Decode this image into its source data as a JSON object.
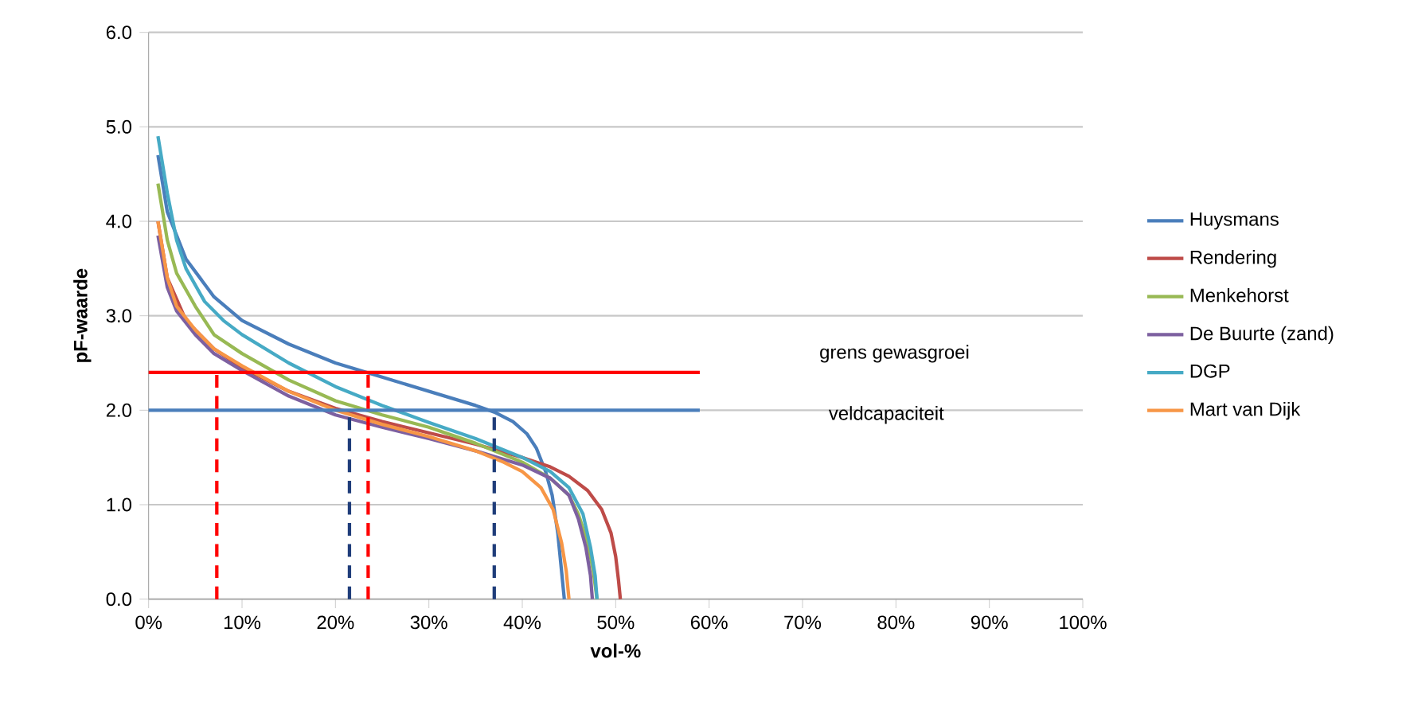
{
  "chart_data": {
    "type": "line",
    "xlabel": "vol-%",
    "ylabel": "pF-waarde",
    "xlim": [
      0,
      100
    ],
    "ylim": [
      0,
      6
    ],
    "xticks": [
      {
        "value": 0,
        "label": "0%"
      },
      {
        "value": 10,
        "label": "10%"
      },
      {
        "value": 20,
        "label": "20%"
      },
      {
        "value": 30,
        "label": "30%"
      },
      {
        "value": 40,
        "label": "40%"
      },
      {
        "value": 50,
        "label": "50%"
      },
      {
        "value": 60,
        "label": "60%"
      },
      {
        "value": 70,
        "label": "70%"
      },
      {
        "value": 80,
        "label": "80%"
      },
      {
        "value": 90,
        "label": "90%"
      },
      {
        "value": 100,
        "label": "100%"
      }
    ],
    "yticks": [
      {
        "value": 0,
        "label": "0.0"
      },
      {
        "value": 1,
        "label": "1.0"
      },
      {
        "value": 2,
        "label": "2.0"
      },
      {
        "value": 3,
        "label": "3.0"
      },
      {
        "value": 4,
        "label": "4.0"
      },
      {
        "value": 5,
        "label": "5.0"
      },
      {
        "value": 6,
        "label": "6.0"
      }
    ],
    "grid": "y",
    "legend": "right",
    "marker": "none",
    "line_style": "solid",
    "series": [
      {
        "name": "Huysmans",
        "color": "#4a7ebb",
        "x": [
          1,
          2,
          4,
          7,
          10,
          15,
          20,
          25,
          30,
          35,
          37,
          39,
          40.5,
          41.5,
          42.5,
          43.2,
          43.8,
          44.2,
          44.5
        ],
        "values": [
          4.7,
          4.1,
          3.6,
          3.2,
          2.95,
          2.7,
          2.5,
          2.35,
          2.2,
          2.05,
          1.98,
          1.88,
          1.75,
          1.6,
          1.35,
          1.1,
          0.7,
          0.3,
          0
        ]
      },
      {
        "name": "Rendering",
        "color": "#be4b48",
        "x": [
          1,
          2,
          4,
          7,
          10,
          15,
          20,
          25,
          30,
          35,
          40,
          43,
          45,
          47,
          48.5,
          49.5,
          50,
          50.3,
          50.5
        ],
        "values": [
          4.0,
          3.4,
          2.95,
          2.65,
          2.45,
          2.2,
          2.02,
          1.88,
          1.76,
          1.64,
          1.5,
          1.4,
          1.3,
          1.15,
          0.95,
          0.7,
          0.45,
          0.2,
          0
        ]
      },
      {
        "name": "Menkehorst",
        "color": "#98b954",
        "x": [
          1,
          2,
          3,
          5,
          7,
          10,
          15,
          20,
          25,
          30,
          35,
          40,
          43,
          45,
          46,
          47,
          47.6,
          48
        ],
        "values": [
          4.4,
          3.8,
          3.45,
          3.1,
          2.8,
          2.6,
          2.32,
          2.1,
          1.95,
          1.82,
          1.65,
          1.45,
          1.28,
          1.1,
          0.9,
          0.6,
          0.3,
          0
        ]
      },
      {
        "name": "De Buurte (zand)",
        "color": "#7d60a0",
        "x": [
          1,
          2,
          3,
          5,
          7,
          10,
          15,
          20,
          25,
          30,
          35,
          40,
          43,
          45,
          46,
          46.8,
          47.3,
          47.5
        ],
        "values": [
          3.85,
          3.3,
          3.05,
          2.8,
          2.6,
          2.42,
          2.15,
          1.95,
          1.82,
          1.7,
          1.57,
          1.42,
          1.28,
          1.1,
          0.85,
          0.55,
          0.25,
          0
        ]
      },
      {
        "name": "DGP",
        "color": "#46aac5",
        "x": [
          1,
          2,
          3,
          4,
          6,
          8,
          10,
          15,
          20,
          25,
          30,
          35,
          40,
          43,
          45,
          46.5,
          47.3,
          47.8,
          48
        ],
        "values": [
          4.9,
          4.3,
          3.8,
          3.5,
          3.15,
          2.95,
          2.8,
          2.5,
          2.25,
          2.05,
          1.87,
          1.7,
          1.5,
          1.35,
          1.18,
          0.9,
          0.55,
          0.25,
          0
        ]
      },
      {
        "name": "Mart van Dijk",
        "color": "#f79646",
        "x": [
          1,
          2,
          3,
          5,
          7,
          10,
          15,
          20,
          25,
          30,
          35,
          38,
          40,
          42,
          43.3,
          44.2,
          44.7,
          45
        ],
        "values": [
          4.0,
          3.4,
          3.1,
          2.85,
          2.65,
          2.47,
          2.2,
          2.0,
          1.85,
          1.72,
          1.57,
          1.45,
          1.35,
          1.18,
          0.95,
          0.6,
          0.3,
          0
        ]
      },
      {
        "color": "#ff0000",
        "x": [
          0,
          59
        ],
        "values": [
          2.4,
          2.4
        ]
      },
      {
        "color": "#4a7ebb",
        "x": [
          0,
          59
        ],
        "values": [
          2.0,
          2.0
        ]
      },
      {
        "color": "#ff0000",
        "line_style": "dashed",
        "x": [
          7.3,
          7.3
        ],
        "values": [
          0,
          2.4
        ]
      },
      {
        "color": "#ff0000",
        "line_style": "dashed",
        "x": [
          23.5,
          23.5
        ],
        "values": [
          0,
          2.4
        ]
      },
      {
        "color": "#1f3d7a",
        "line_style": "dashed",
        "x": [
          21.5,
          21.5
        ],
        "values": [
          0,
          2.0
        ]
      },
      {
        "color": "#1f3d7a",
        "line_style": "dashed",
        "x": [
          37,
          37
        ],
        "values": [
          0,
          2.0
        ]
      }
    ],
    "annotations": [
      "grens gewasgroei",
      "veldcapaciteit"
    ]
  }
}
